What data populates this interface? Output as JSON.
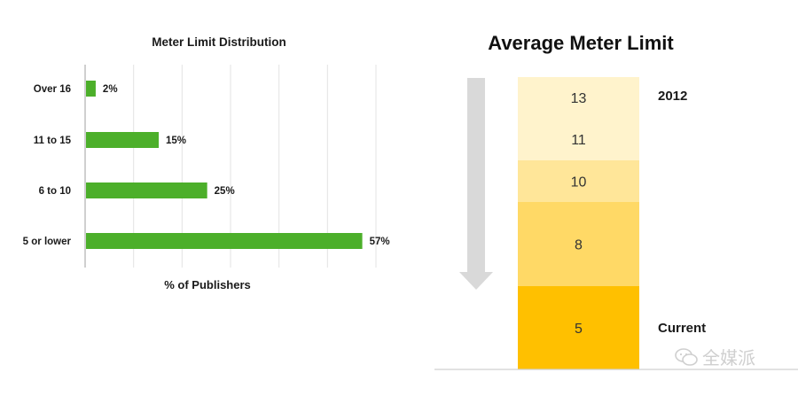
{
  "chart_data": [
    {
      "type": "bar",
      "orientation": "horizontal",
      "title": "Meter Limit Distribution",
      "categories": [
        "Over 16",
        "11 to 15",
        "6 to 10",
        "5 or lower"
      ],
      "values": [
        2,
        15,
        25,
        57
      ],
      "value_labels": [
        "2%",
        "15%",
        "25%",
        "57%"
      ],
      "xlabel": "% of Publishers",
      "ylabel": "",
      "xlim": [
        0,
        60
      ],
      "grid": true,
      "bar_color": "#4caf2a"
    },
    {
      "type": "stacked-bar",
      "title": "Average Meter Limit",
      "segments": [
        {
          "label": "13",
          "color": "#fff3cc"
        },
        {
          "label": "11",
          "color": "#fff3cc"
        },
        {
          "label": "10",
          "color": "#ffe699"
        },
        {
          "label": "8",
          "color": "#ffd966"
        },
        {
          "label": "5",
          "color": "#ffc000"
        }
      ],
      "top_label": "2012",
      "bottom_label": "Current",
      "arrow_direction": "down",
      "arrow_color": "#d9d9d9"
    }
  ],
  "watermark": {
    "text": "全媒派",
    "icon": "wechat-icon"
  }
}
